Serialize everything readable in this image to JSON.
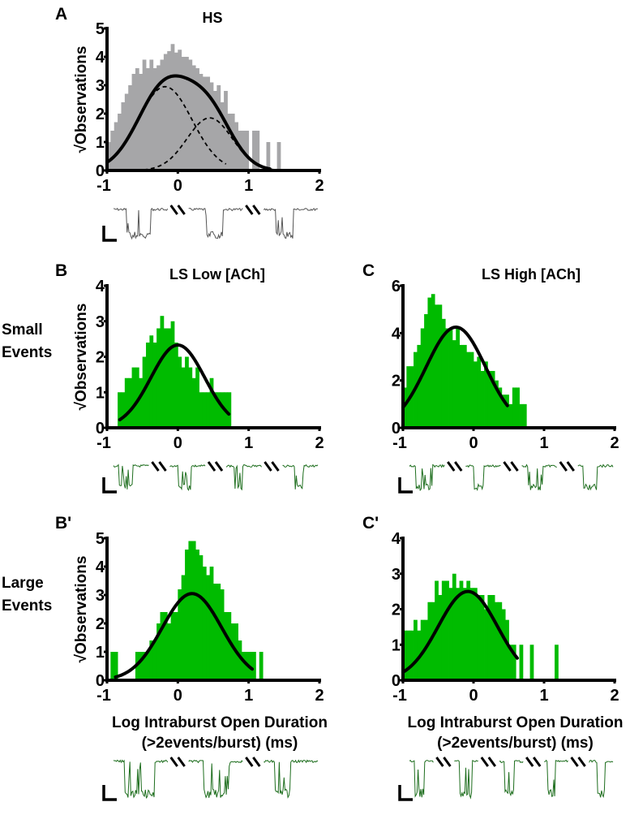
{
  "figure": {
    "row_labels": [
      {
        "id": "small",
        "lines": [
          "Small",
          "Events"
        ]
      },
      {
        "id": "large",
        "lines": [
          "Large",
          "Events"
        ]
      }
    ],
    "trace_colors": {
      "gray": "#555555",
      "green": "#1e6e1e"
    },
    "bar_colors": {
      "gray": "#a6a6a8",
      "green": "#00bb00"
    },
    "fit_color": "#000000"
  },
  "chart_data": [
    {
      "id": "A",
      "panel_label": "A",
      "type": "bar",
      "title": "HS",
      "ylabel": "√Observations",
      "xlabel": "",
      "xlim": [
        -1,
        2
      ],
      "ylim": [
        0,
        5
      ],
      "xticks": [
        "-1",
        "0",
        "1",
        "2"
      ],
      "yticks": [
        "0",
        "1",
        "2",
        "3",
        "4",
        "5"
      ],
      "bar_color": "gray",
      "bin_start": -1.0,
      "bin_width": 0.05,
      "values": [
        1.0,
        1.4,
        1.7,
        2.0,
        2.4,
        2.7,
        3.0,
        3.4,
        3.6,
        3.4,
        3.9,
        3.6,
        3.9,
        3.6,
        3.7,
        3.9,
        4.1,
        4.2,
        4.45,
        4.15,
        4.25,
        4.0,
        4.0,
        3.9,
        3.7,
        3.6,
        3.4,
        3.3,
        3.3,
        3.1,
        2.8,
        3.0,
        2.4,
        2.8,
        2.0,
        2.0,
        1.7,
        1.4,
        1.4,
        1.4,
        0,
        1.4,
        1.4,
        0,
        0,
        1.0,
        0,
        0,
        1.0,
        0
      ],
      "fit": {
        "type": "sum",
        "components": [
          {
            "amp": 2.95,
            "mu": -0.18,
            "sigma": 0.38
          },
          {
            "amp": 1.85,
            "mu": 0.45,
            "sigma": 0.32
          }
        ],
        "range": [
          -1,
          1.3
        ],
        "show_components": true
      },
      "trace": {
        "color": "gray",
        "segments": 3
      }
    },
    {
      "id": "B",
      "panel_label": "B",
      "type": "bar",
      "title": "LS Low [ACh]",
      "ylabel": "√Observations",
      "xlabel": "",
      "xlim": [
        -1,
        2
      ],
      "ylim": [
        0,
        4
      ],
      "xticks": [
        "-1",
        "0",
        "1",
        "2"
      ],
      "yticks": [
        "0",
        "1",
        "2",
        "3",
        "4"
      ],
      "bar_color": "green",
      "bin_start": -0.85,
      "bin_width": 0.05,
      "values": [
        1.0,
        1.0,
        1.4,
        1.4,
        1.7,
        1.7,
        1.4,
        2.0,
        2.4,
        2.6,
        2.4,
        2.8,
        3.15,
        2.8,
        2.8,
        3.0,
        2.4,
        2.0,
        1.7,
        2.0,
        1.7,
        1.4,
        1.7,
        1.0,
        1.0,
        1.0,
        1.4,
        1.0,
        1.0,
        1.0,
        1.0,
        1.0
      ],
      "fit": {
        "type": "single",
        "components": [
          {
            "amp": 2.33,
            "mu": 0.0,
            "sigma": 0.38
          }
        ],
        "range": [
          -0.82,
          0.72
        ],
        "show_components": false
      },
      "trace": {
        "color": "green",
        "segments": 4
      }
    },
    {
      "id": "C",
      "panel_label": "C",
      "type": "bar",
      "title": "LS High [ACh]",
      "ylabel": "",
      "xlabel": "",
      "xlim": [
        -1,
        2
      ],
      "ylim": [
        0,
        6
      ],
      "xticks": [
        "-1",
        "0",
        "1",
        "2"
      ],
      "yticks": [
        "0",
        "2",
        "4",
        "6"
      ],
      "bar_color": "green",
      "bin_start": -1.0,
      "bin_width": 0.05,
      "values": [
        1.7,
        2.6,
        2.6,
        3.2,
        3.5,
        4.2,
        4.8,
        5.5,
        5.65,
        5.2,
        5.2,
        4.6,
        4.2,
        4.2,
        3.7,
        4.2,
        3.5,
        3.5,
        3.2,
        3.2,
        2.8,
        3.0,
        2.4,
        2.8,
        2.4,
        2.4,
        2.0,
        1.7,
        1.4,
        1.4,
        1.0,
        1.7,
        1.7,
        1.0,
        1.0,
        0,
        0
      ],
      "fit": {
        "type": "single",
        "components": [
          {
            "amp": 4.25,
            "mu": -0.25,
            "sigma": 0.42
          }
        ],
        "range": [
          -1,
          0.48
        ],
        "show_components": false
      },
      "trace": {
        "color": "green",
        "segments": 4
      }
    },
    {
      "id": "Bp",
      "panel_label": "B'",
      "type": "bar",
      "title": "",
      "ylabel": "√Observations",
      "xlabel": "Log Intraburst Open Duration\n(>2events/burst) (ms)",
      "xlim": [
        -1,
        2
      ],
      "ylim": [
        0,
        5
      ],
      "xticks": [
        "-1",
        "0",
        "1",
        "2"
      ],
      "yticks": [
        "0",
        "1",
        "2",
        "3",
        "4",
        "5"
      ],
      "bar_color": "green",
      "bin_start": -0.95,
      "bin_width": 0.05,
      "values": [
        1.0,
        1.0,
        0,
        0,
        0,
        0,
        0,
        1.0,
        1.0,
        1.0,
        1.0,
        1.4,
        1.4,
        2.0,
        2.4,
        2.4,
        2.0,
        2.4,
        2.4,
        3.2,
        3.7,
        4.6,
        4.9,
        4.9,
        4.6,
        4.4,
        4.0,
        3.7,
        4.0,
        3.4,
        3.4,
        3.2,
        2.4,
        2.4,
        2.0,
        2.0,
        1.4,
        1.0,
        1.0,
        1.0,
        1.0,
        0,
        1.0,
        0
      ],
      "fit": {
        "type": "single",
        "components": [
          {
            "amp": 3.05,
            "mu": 0.2,
            "sigma": 0.42
          }
        ],
        "range": [
          -0.88,
          1.05
        ],
        "show_components": false
      },
      "trace": {
        "color": "green",
        "segments": 3
      }
    },
    {
      "id": "Cp",
      "panel_label": "C'",
      "type": "bar",
      "title": "",
      "ylabel": "",
      "xlabel": "Log Intraburst Open Duration\n(>2events/burst) (ms)",
      "xlim": [
        -1,
        2
      ],
      "ylim": [
        0,
        4
      ],
      "xticks": [
        "-1",
        "0",
        "1",
        "2"
      ],
      "yticks": [
        "0",
        "1",
        "2",
        "3",
        "4"
      ],
      "bar_color": "green",
      "bin_start": -1.0,
      "bin_width": 0.05,
      "values": [
        1.4,
        1.4,
        1.4,
        1.7,
        1.4,
        1.7,
        1.7,
        2.2,
        2.2,
        2.8,
        2.4,
        2.8,
        2.8,
        2.6,
        3.0,
        2.6,
        2.8,
        2.6,
        2.8,
        2.6,
        2.6,
        2.4,
        2.4,
        2.0,
        2.4,
        2.4,
        2.2,
        2.2,
        2.0,
        1.7,
        1.0,
        1.0,
        0,
        1.0,
        0,
        0,
        1.0,
        0,
        0,
        0,
        0,
        0,
        0,
        1.0,
        0
      ],
      "fit": {
        "type": "single",
        "components": [
          {
            "amp": 2.5,
            "mu": -0.08,
            "sigma": 0.42
          }
        ],
        "range": [
          -1,
          0.62
        ],
        "show_components": false
      },
      "trace": {
        "color": "green",
        "segments": 5
      }
    }
  ]
}
